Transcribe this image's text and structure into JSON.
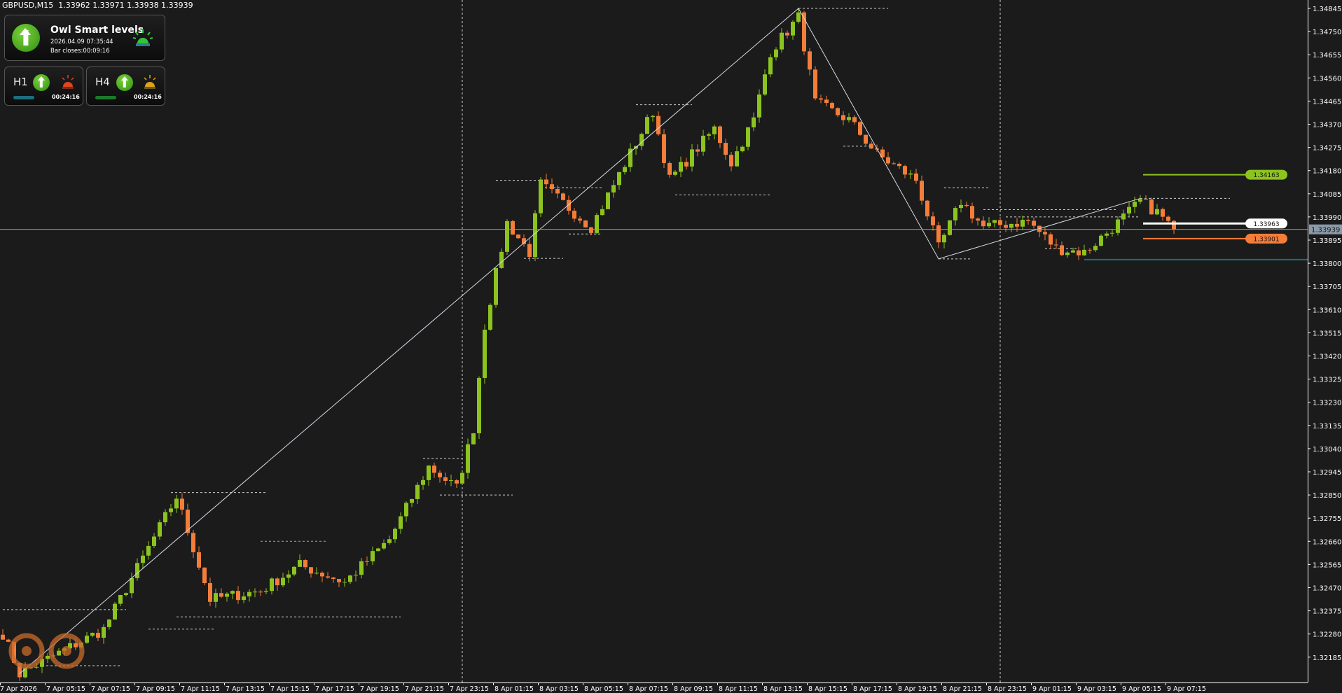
{
  "header": {
    "symbol": "GBPUSD,M15",
    "quote": "1.33962 1.33971 1.33938 1.33939"
  },
  "widget": {
    "title": "Owl Smart levels",
    "datetime": "2026.04.09 07:35:44",
    "bar_closes": "Bar closes:00:09:16",
    "main_direction": "arrow-up-icon",
    "main_alert_color": "#2ecc40",
    "timeframes": [
      {
        "label": "H1",
        "direction": "arrow-up-icon",
        "alert_color": "#e2441c",
        "bar_color": "#1b6f80",
        "timer": "00:24:16"
      },
      {
        "label": "H4",
        "direction": "arrow-up-icon",
        "alert_color": "#e0a21c",
        "bar_color": "#1d7a2a",
        "timer": "00:24:16"
      }
    ]
  },
  "colors": {
    "bull": "#8cc31f",
    "bear": "#f47d3a",
    "background": "#1b1b1b",
    "grid": "#ffffff",
    "crosshair": "#8a9aa8",
    "teal_level": "#1a6f80"
  },
  "chart_data": {
    "type": "candlestick",
    "symbol": "GBPUSD",
    "timeframe": "M15",
    "ylim": [
      1.32185,
      1.34845
    ],
    "y_ticks": [
      "1.34845",
      "1.34750",
      "1.34655",
      "1.34560",
      "1.34465",
      "1.34370",
      "1.34275",
      "1.34180",
      "1.34085",
      "1.33990",
      "1.33895",
      "1.33800",
      "1.33705",
      "1.33610",
      "1.33515",
      "1.33420",
      "1.33325",
      "1.33230",
      "1.33135",
      "1.33040",
      "1.32945",
      "1.32850",
      "1.32755",
      "1.32660",
      "1.32565",
      "1.32470",
      "1.32375",
      "1.32280",
      "1.32185"
    ],
    "x_ticks": [
      "7 Apr 2026",
      "7 Apr 05:15",
      "7 Apr 07:15",
      "7 Apr 09:15",
      "7 Apr 11:15",
      "7 Apr 13:15",
      "7 Apr 15:15",
      "7 Apr 17:15",
      "7 Apr 19:15",
      "7 Apr 21:15",
      "7 Apr 23:15",
      "8 Apr 01:15",
      "8 Apr 03:15",
      "8 Apr 05:15",
      "8 Apr 07:15",
      "8 Apr 09:15",
      "8 Apr 11:15",
      "8 Apr 13:15",
      "8 Apr 15:15",
      "8 Apr 17:15",
      "8 Apr 19:15",
      "8 Apr 21:15",
      "8 Apr 23:15",
      "9 Apr 01:15",
      "9 Apr 03:15",
      "9 Apr 05:15",
      "9 Apr 07:15"
    ],
    "current_price": "1.33939",
    "price_path": [
      [
        "7 Apr 03:15",
        1.32282
      ],
      [
        "7 Apr 04:00",
        1.32117
      ],
      [
        "7 Apr 07:45",
        1.32299
      ],
      [
        "7 Apr 11:00",
        1.32843
      ],
      [
        "7 Apr 12:30",
        1.32422
      ],
      [
        "7 Apr 14:45",
        1.32457
      ],
      [
        "7 Apr 16:30",
        1.32562
      ],
      [
        "7 Apr 18:30",
        1.32492
      ],
      [
        "7 Apr 20:30",
        1.32668
      ],
      [
        "7 Apr 22:15",
        1.32966
      ],
      [
        "7 Apr 23:30",
        1.32878
      ],
      [
        "8 Apr 00:15",
        1.33124
      ],
      [
        "8 Apr 00:45",
        1.33545
      ],
      [
        "8 Apr 01:45",
        1.33966
      ],
      [
        "8 Apr 02:45",
        1.33844
      ],
      [
        "8 Apr 03:15",
        1.34124
      ],
      [
        "8 Apr 05:30",
        1.33949
      ],
      [
        "8 Apr 08:15",
        1.34423
      ],
      [
        "8 Apr 09:00",
        1.34142
      ],
      [
        "8 Apr 11:00",
        1.34352
      ],
      [
        "8 Apr 11:45",
        1.34212
      ],
      [
        "8 Apr 12:45",
        1.34388
      ],
      [
        "8 Apr 13:30",
        1.34668
      ],
      [
        "8 Apr 14:45",
        1.34809
      ],
      [
        "8 Apr 15:30",
        1.34458
      ],
      [
        "8 Apr 17:00",
        1.34388
      ],
      [
        "8 Apr 18:15",
        1.34247
      ],
      [
        "8 Apr 20:00",
        1.34142
      ],
      [
        "8 Apr 21:00",
        1.33861
      ],
      [
        "8 Apr 22:00",
        1.34054
      ],
      [
        "8 Apr 23:00",
        1.33949
      ],
      [
        "9 Apr 01:00",
        1.33973
      ],
      [
        "9 Apr 02:15",
        1.33861
      ],
      [
        "9 Apr 03:30",
        1.33844
      ],
      [
        "9 Apr 05:00",
        1.33966
      ],
      [
        "9 Apr 06:00",
        1.34054
      ],
      [
        "9 Apr 06:45",
        1.34009
      ],
      [
        "9 Apr 07:30",
        1.33939
      ]
    ],
    "zigzag": [
      [
        "7 Apr 04:00",
        1.32117
      ],
      [
        "8 Apr 14:45",
        1.34845
      ],
      [
        "8 Apr 21:00",
        1.33818
      ],
      [
        "9 Apr 06:00",
        1.34066
      ]
    ],
    "day_separators": [
      "7 Apr 23:45",
      "8 Apr 23:45"
    ],
    "dotted_levels": [
      [
        "7 Apr 03:15",
        "7 Apr 08:45",
        1.3238
      ],
      [
        "7 Apr 05:00",
        "7 Apr 08:30",
        1.3215
      ],
      [
        "7 Apr 09:45",
        "7 Apr 12:45",
        1.323
      ],
      [
        "7 Apr 10:45",
        "7 Apr 15:00",
        1.3286
      ],
      [
        "7 Apr 11:00",
        "7 Apr 21:00",
        1.3235
      ],
      [
        "7 Apr 14:45",
        "7 Apr 17:45",
        1.3266
      ],
      [
        "7 Apr 22:00",
        "7 Apr 23:45",
        1.33
      ],
      [
        "7 Apr 22:45",
        "8 Apr 02:00",
        1.3285
      ],
      [
        "8 Apr 01:15",
        "8 Apr 03:15",
        1.3414
      ],
      [
        "8 Apr 02:30",
        "8 Apr 04:15",
        1.3382
      ],
      [
        "8 Apr 03:15",
        "8 Apr 06:00",
        1.3411
      ],
      [
        "8 Apr 04:30",
        "8 Apr 06:00",
        1.3392
      ],
      [
        "8 Apr 07:30",
        "8 Apr 10:00",
        1.3445
      ],
      [
        "8 Apr 09:15",
        "8 Apr 13:30",
        1.3408
      ],
      [
        "8 Apr 14:45",
        "8 Apr 18:45",
        1.34845
      ],
      [
        "8 Apr 16:45",
        "8 Apr 18:00",
        1.3428
      ],
      [
        "8 Apr 21:00",
        "8 Apr 22:30",
        1.33818
      ],
      [
        "8 Apr 21:15",
        "8 Apr 23:15",
        1.3411
      ],
      [
        "8 Apr 23:00",
        "9 Apr 05:00",
        1.3402
      ],
      [
        "9 Apr 01:45",
        "9 Apr 03:15",
        1.3386
      ],
      [
        "9 Apr 06:00",
        "9 Apr 10:00",
        1.34066
      ],
      [
        "9 Apr 00:00",
        "9 Apr 06:00",
        1.3399
      ]
    ],
    "levels": [
      {
        "price": "1.34163",
        "color": "#8cc31f",
        "text_color": "#111111",
        "from": "9 Apr 06:00"
      },
      {
        "price": "1.33963",
        "color": "#ffffff",
        "text_color": "#111111",
        "from": "9 Apr 06:00"
      },
      {
        "price": "1.33901",
        "color": "#f47d3a",
        "text_color": "#111111",
        "from": "9 Apr 06:00"
      }
    ],
    "teal_level": {
      "price": 1.33815,
      "from": "9 Apr 03:30"
    }
  }
}
